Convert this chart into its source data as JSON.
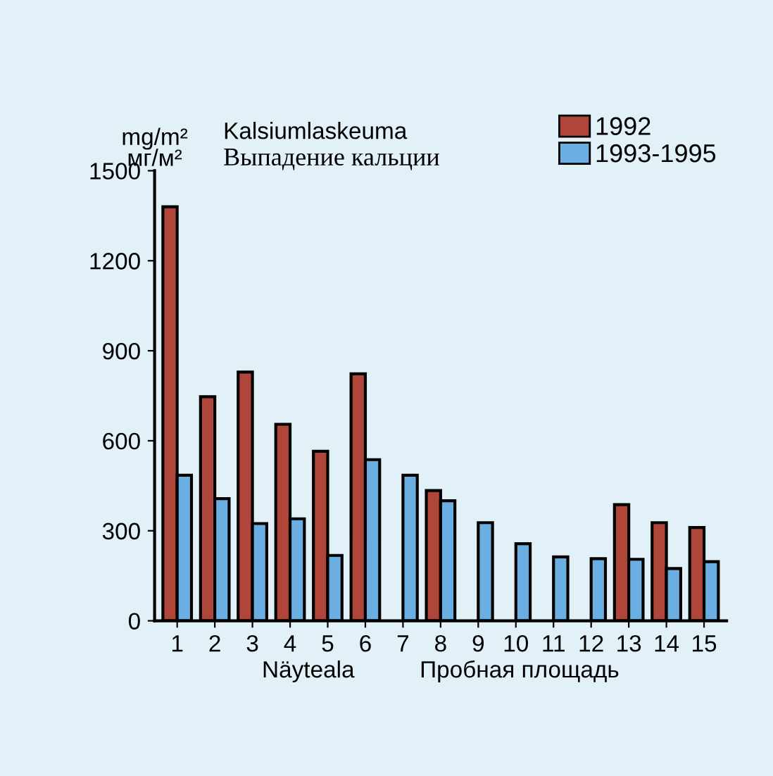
{
  "chart_data": {
    "type": "bar",
    "title": "Kalsiumlaskeuma",
    "subtitle": "Выпадение кальции",
    "ylabel": "mg/m²\nмг/м²",
    "xlabel": "Näyteala          Пробная площадь",
    "categories": [
      "1",
      "2",
      "3",
      "4",
      "5",
      "6",
      "7",
      "8",
      "9",
      "10",
      "11",
      "12",
      "13",
      "14",
      "15"
    ],
    "series": [
      {
        "name": "1992",
        "color": "#b0463a",
        "values": [
          1380,
          747,
          829,
          655,
          565,
          823,
          null,
          434,
          null,
          null,
          null,
          null,
          387,
          327,
          311
        ]
      },
      {
        "name": "1993-1995",
        "color": "#6aaee2",
        "values": [
          485,
          407,
          324,
          340,
          218,
          537,
          485,
          400,
          327,
          257,
          213,
          207,
          205,
          174,
          197
        ]
      }
    ],
    "ylim": [
      0,
      1500
    ],
    "yticks": [
      0,
      300,
      600,
      900,
      1200,
      1500
    ],
    "grid": false,
    "legend": "top right"
  }
}
